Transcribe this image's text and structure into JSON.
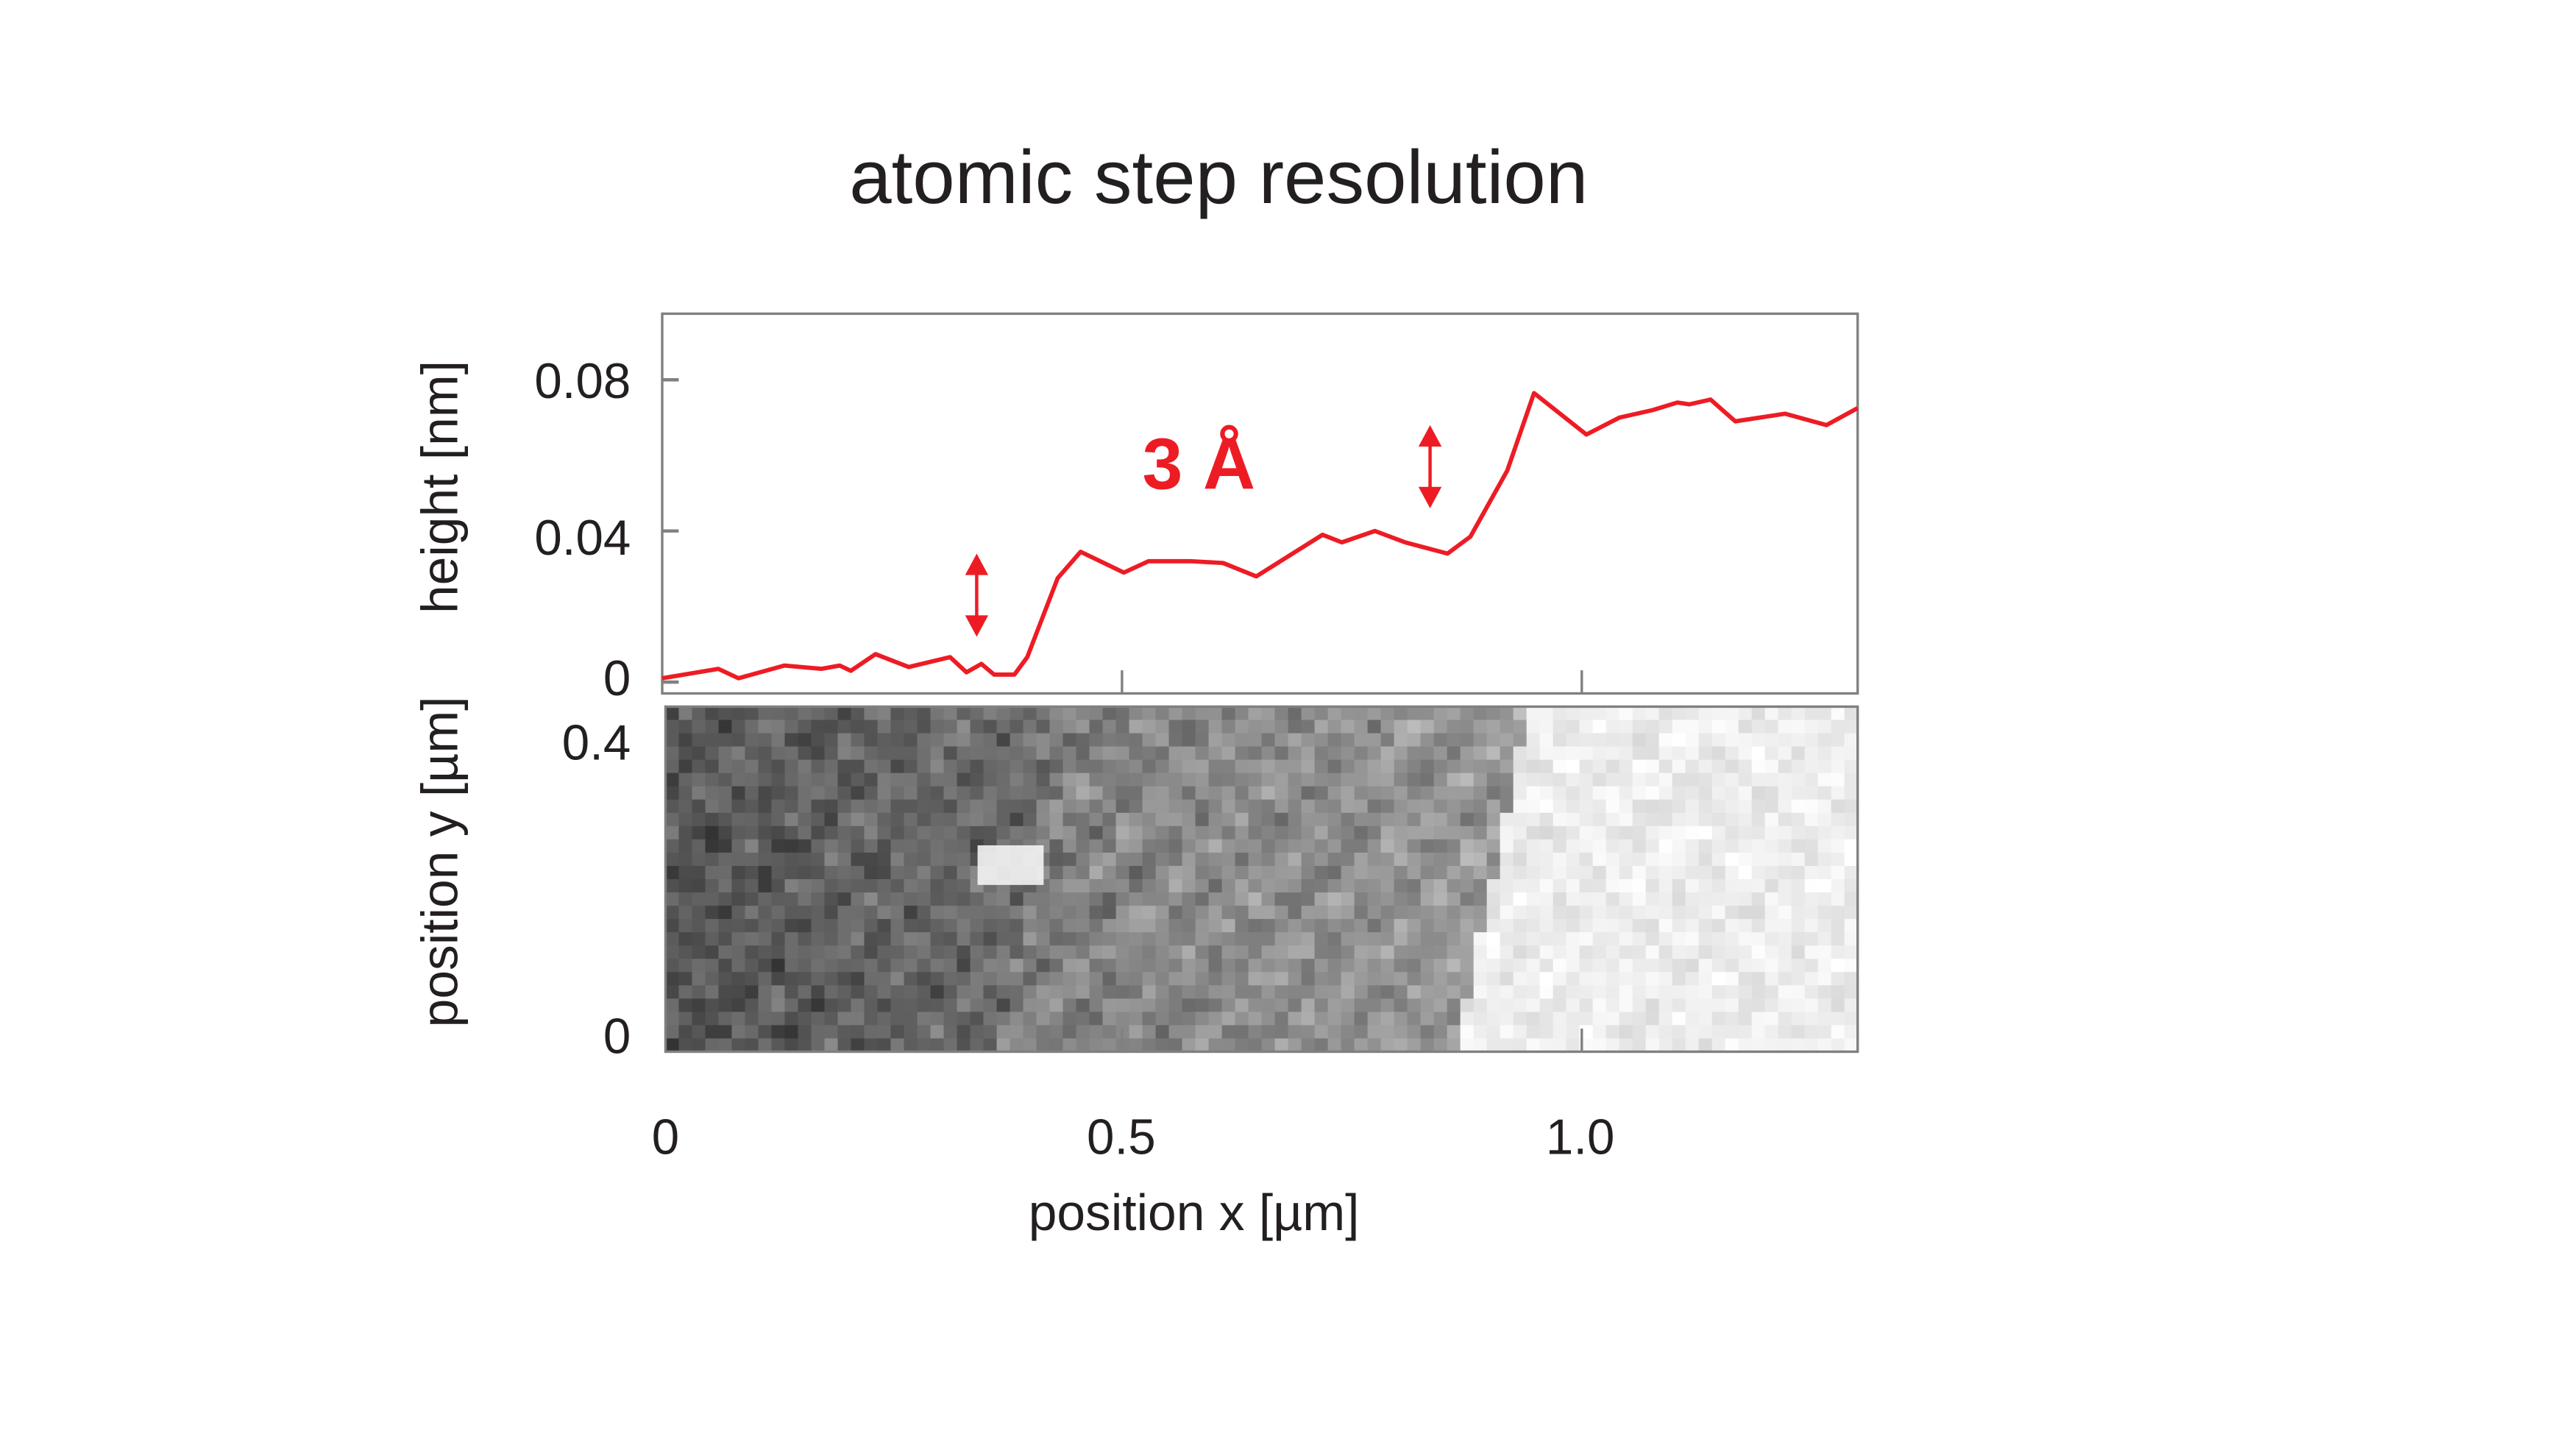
{
  "chart_data": [
    {
      "type": "line",
      "title": "atomic step resolution",
      "xlabel": "position x [µm]",
      "ylabel": "height [nm]",
      "xlim": [
        0,
        1.3
      ],
      "ylim": [
        -0.003,
        0.0975
      ],
      "xticks": [
        0,
        0.5,
        1.0
      ],
      "xtick_labels": [
        "0",
        "0.5",
        "1.0"
      ],
      "yticks": [
        0,
        0.04,
        0.08
      ],
      "ytick_labels": [
        "0",
        "0.04",
        "0.08"
      ],
      "grid": false,
      "line_color": "#ed1c24",
      "x": [
        0,
        0.061,
        0.083,
        0.133,
        0.173,
        0.193,
        0.205,
        0.232,
        0.268,
        0.313,
        0.331,
        0.347,
        0.361,
        0.383,
        0.397,
        0.43,
        0.455,
        0.502,
        0.529,
        0.574,
        0.61,
        0.646,
        0.718,
        0.739,
        0.775,
        0.808,
        0.854,
        0.879,
        0.919,
        0.948,
        1.005,
        1.041,
        1.077,
        1.104,
        1.117,
        1.14,
        1.167,
        1.221,
        1.266,
        1.3
      ],
      "y": [
        0.001,
        0.0035,
        0.001,
        0.0044,
        0.0035,
        0.0044,
        0.003,
        0.0074,
        0.004,
        0.0066,
        0.0026,
        0.0048,
        0.002,
        0.002,
        0.0066,
        0.0275,
        0.0345,
        0.029,
        0.032,
        0.032,
        0.0315,
        0.028,
        0.039,
        0.037,
        0.04,
        0.037,
        0.034,
        0.0385,
        0.056,
        0.0765,
        0.0655,
        0.07,
        0.072,
        0.074,
        0.0735,
        0.0748,
        0.069,
        0.071,
        0.068,
        0.0725
      ],
      "annotations": [
        {
          "text": "3 Å",
          "color": "#ed1c24"
        },
        {
          "type": "double-arrow",
          "x": 0.342,
          "y_from": 0.012,
          "y_to": 0.034
        },
        {
          "type": "double-arrow",
          "x": 0.835,
          "y_from": 0.046,
          "y_to": 0.068
        }
      ]
    },
    {
      "type": "heatmap",
      "colormap": "grayscale",
      "xlabel": "position x [µm]",
      "ylabel": "position y [µm]",
      "xlim": [
        0,
        1.3
      ],
      "ylim": [
        -0.022,
        0.447
      ],
      "yticks": [
        0,
        0.4
      ],
      "ytick_labels": [
        "0",
        "0.4"
      ],
      "description_of_levels": {
        "step_edges_x": [
          0.4,
          0.9
        ]
      }
    }
  ]
}
